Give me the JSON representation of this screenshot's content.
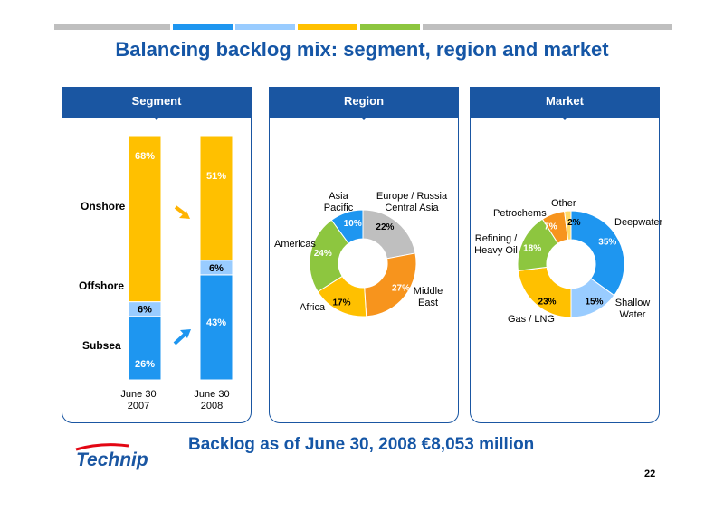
{
  "title": "Balancing backlog mix: segment, region and market",
  "footer": "Backlog as of June 30, 2008  €8,053 million",
  "page_number": "22",
  "logo_text": "Technip",
  "colors": {
    "brand_blue": "#1a56a2",
    "onshore": "#ffc000",
    "offshore": "#99ccff",
    "subsea": "#1e96f0",
    "arrow_onshore": "#ffb300",
    "arrow_subsea": "#1e96f0"
  },
  "segment": {
    "header": "Segment",
    "row_labels": [
      "Onshore",
      "Offshore",
      "Subsea"
    ],
    "col_labels": [
      [
        "June 30",
        "2007"
      ],
      [
        "June 30",
        "2008"
      ]
    ]
  },
  "region": {
    "header": "Region"
  },
  "market": {
    "header": "Market"
  },
  "chart_data": [
    {
      "type": "bar",
      "stacked": true,
      "categories": [
        "June 30 2007",
        "June 30 2008"
      ],
      "series": [
        {
          "name": "Subsea",
          "values": [
            26,
            43
          ],
          "color": "#1e96f0"
        },
        {
          "name": "Offshore",
          "values": [
            6,
            6
          ],
          "color": "#99ccff"
        },
        {
          "name": "Onshore",
          "values": [
            68,
            51
          ],
          "color": "#ffc000"
        }
      ],
      "ylim": [
        0,
        100
      ]
    },
    {
      "type": "pie",
      "donut": true,
      "labels": [
        "Europe / Russia Central Asia",
        "Middle East",
        "Africa",
        "Americas",
        "Asia Pacific"
      ],
      "values": [
        22,
        27,
        17,
        24,
        10
      ],
      "colors": [
        "#bfbfbf",
        "#f7941d",
        "#ffc000",
        "#8dc63f",
        "#1e96f0"
      ]
    },
    {
      "type": "pie",
      "donut": true,
      "labels": [
        "Deepwater",
        "Shallow Water",
        "Gas / LNG",
        "Refining / Heavy Oil",
        "Petrochems",
        "Other"
      ],
      "values": [
        35,
        15,
        23,
        18,
        7,
        2
      ],
      "colors": [
        "#1e96f0",
        "#99ccff",
        "#ffc000",
        "#8dc63f",
        "#f7941d",
        "#ffd966"
      ]
    }
  ]
}
